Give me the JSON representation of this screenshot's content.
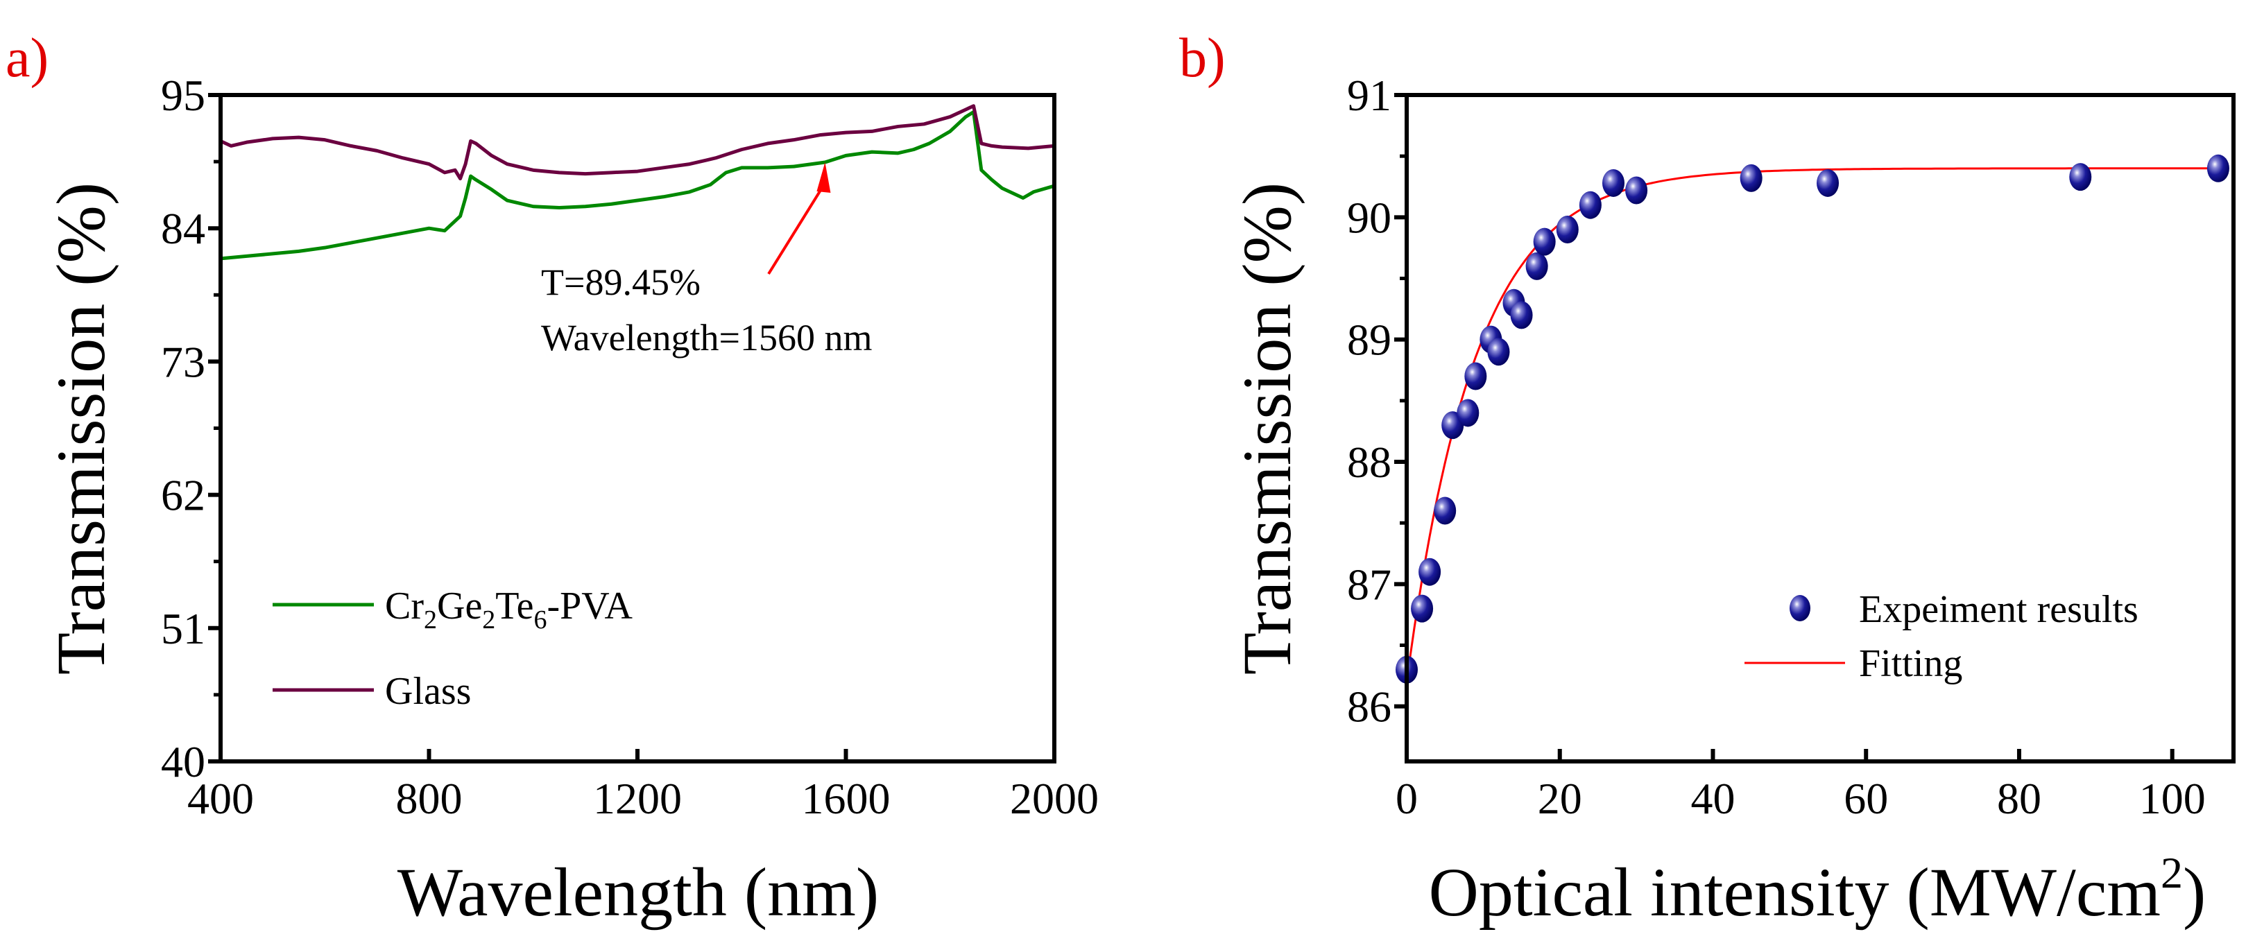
{
  "chart_data": [
    {
      "panel_label": "a)",
      "type": "line",
      "xlabel": "Wavelength (nm)",
      "ylabel": "Transmission (%)",
      "xlim": [
        400,
        2000
      ],
      "ylim": [
        40,
        95
      ],
      "xticks": [
        400,
        800,
        1200,
        1600,
        2000
      ],
      "yticks": [
        40,
        51,
        62,
        73,
        84,
        95
      ],
      "grid": false,
      "legend_position": "bottom-left",
      "series": [
        {
          "name": "Cr2Ge2Te6-PVA",
          "legend_parts": [
            "Cr",
            "2",
            "Ge",
            "2",
            "Te",
            "6",
            "-PVA"
          ],
          "color": "#008800",
          "x": [
            400,
            450,
            500,
            550,
            600,
            650,
            700,
            750,
            800,
            830,
            850,
            860,
            870,
            880,
            890,
            920,
            950,
            1000,
            1050,
            1100,
            1150,
            1200,
            1250,
            1300,
            1340,
            1370,
            1400,
            1450,
            1500,
            1560,
            1600,
            1650,
            1700,
            1730,
            1760,
            1800,
            1830,
            1845,
            1860,
            1880,
            1900,
            1940,
            1960,
            2000
          ],
          "y": [
            81.5,
            81.7,
            81.9,
            82.1,
            82.4,
            82.8,
            83.2,
            83.6,
            84.0,
            83.8,
            84.6,
            85.0,
            86.5,
            88.3,
            88.0,
            87.2,
            86.3,
            85.8,
            85.7,
            85.8,
            86.0,
            86.3,
            86.6,
            87.0,
            87.6,
            88.6,
            89.0,
            89.0,
            89.1,
            89.45,
            90.0,
            90.3,
            90.2,
            90.5,
            91.0,
            92.0,
            93.2,
            93.6,
            88.8,
            88.0,
            87.3,
            86.5,
            87.0,
            87.5
          ]
        },
        {
          "name": "Glass",
          "color": "#6b0040",
          "x": [
            400,
            420,
            450,
            500,
            550,
            600,
            650,
            700,
            750,
            800,
            830,
            850,
            860,
            870,
            880,
            890,
            920,
            950,
            1000,
            1050,
            1100,
            1150,
            1200,
            1250,
            1300,
            1350,
            1400,
            1450,
            1500,
            1550,
            1600,
            1650,
            1700,
            1750,
            1800,
            1830,
            1845,
            1860,
            1880,
            1900,
            1950,
            2000
          ],
          "y": [
            91.2,
            90.8,
            91.1,
            91.4,
            91.5,
            91.3,
            90.8,
            90.4,
            89.8,
            89.3,
            88.6,
            88.8,
            88.1,
            89.3,
            91.2,
            91.0,
            90.0,
            89.3,
            88.8,
            88.6,
            88.5,
            88.6,
            88.7,
            89.0,
            89.3,
            89.8,
            90.5,
            91.0,
            91.3,
            91.7,
            91.9,
            92.0,
            92.4,
            92.6,
            93.2,
            93.8,
            94.1,
            91.0,
            90.8,
            90.7,
            90.6,
            90.8
          ]
        }
      ],
      "annotation": {
        "lines": [
          "T=89.45%",
          "Wavelength=1560 nm"
        ],
        "arrow_target": [
          1560,
          89.45
        ],
        "arrow_color": "#ff0000"
      }
    },
    {
      "panel_label": "b)",
      "type": "scatter",
      "xlabel_main": "Optical intensity (MW/cm",
      "xlabel_sup": "2",
      "xlabel_close": ")",
      "ylabel": "Transmission (%)",
      "xlim": [
        0,
        108
      ],
      "ylim": [
        85.55,
        91
      ],
      "xticks": [
        0,
        20,
        40,
        60,
        80,
        100
      ],
      "yticks": [
        86,
        87,
        88,
        89,
        90,
        91
      ],
      "grid": false,
      "legend_position": "bottom-right",
      "series": [
        {
          "name": "Expeiment results",
          "type": "scatter",
          "color": "#1a1a9a",
          "x": [
            0,
            2,
            3,
            5,
            6,
            8,
            9,
            11,
            12,
            14,
            15,
            17,
            18,
            21,
            24,
            27,
            30,
            45,
            55,
            88,
            106
          ],
          "y": [
            86.3,
            86.8,
            87.1,
            87.6,
            88.3,
            88.4,
            88.7,
            89.0,
            88.9,
            89.3,
            89.2,
            89.6,
            89.8,
            89.9,
            90.1,
            90.28,
            90.22,
            90.32,
            90.28,
            90.33,
            90.4
          ]
        },
        {
          "name": "Fitting",
          "type": "line",
          "color": "#ff0000",
          "model": {
            "y0": 86.2,
            "amplitude": 4.2,
            "t": 9.0
          }
        }
      ]
    }
  ]
}
